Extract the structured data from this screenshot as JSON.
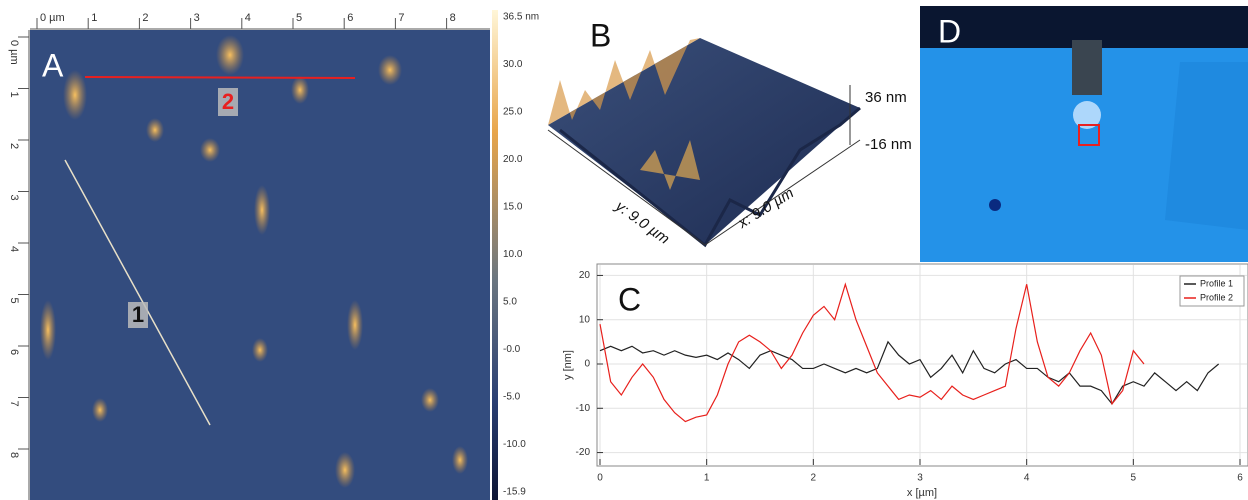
{
  "panels": {
    "a": {
      "letter": "A",
      "top_ruler": [
        "0 µm",
        "1",
        "2",
        "3",
        "4",
        "5",
        "6",
        "7",
        "8"
      ],
      "left_ruler": [
        "0 µm",
        "1",
        "2",
        "3",
        "4",
        "5",
        "6",
        "7",
        "8"
      ],
      "colorbar": [
        "36.5 nm",
        "30.0",
        "25.0",
        "20.0",
        "15.0",
        "10.0",
        "5.0",
        "-0.0",
        "-5.0",
        "-10.0",
        "-15.9"
      ],
      "profile_labels": [
        "1",
        "2"
      ]
    },
    "b": {
      "letter": "B",
      "z_top": "36 nm",
      "z_bottom": "-16 nm",
      "y_label": "y: 9.0 µm",
      "x_label": "x: 9.0 µm"
    },
    "d": {
      "letter": "D"
    }
  },
  "chart_data": {
    "type": "line",
    "letter": "C",
    "x_label": "x [µm]",
    "y_label": "y [nm]",
    "x": [
      0,
      0.1,
      0.2,
      0.3,
      0.4,
      0.5,
      0.6,
      0.7,
      0.8,
      0.9,
      1,
      1.1,
      1.2,
      1.3,
      1.4,
      1.5,
      1.6,
      1.7,
      1.8,
      1.9,
      2,
      2.1,
      2.2,
      2.3,
      2.4,
      2.5,
      2.6,
      2.7,
      2.8,
      2.9,
      3,
      3.1,
      3.2,
      3.3,
      3.4,
      3.5,
      3.6,
      3.7,
      3.8,
      3.9,
      4,
      4.1,
      4.2,
      4.3,
      4.4,
      4.5,
      4.6,
      4.7,
      4.8,
      4.9,
      5,
      5.1,
      5.2,
      5.3,
      5.4,
      5.5,
      5.6,
      5.7,
      5.8
    ],
    "series": [
      {
        "name": "Profile 1",
        "color": "#222222",
        "values": [
          3,
          4,
          3,
          4,
          2.5,
          3,
          2,
          3,
          2,
          1.5,
          2,
          1,
          2.5,
          1,
          -1,
          2,
          3,
          2,
          1,
          -1,
          -1,
          0,
          -1,
          -2,
          -1,
          -2,
          -1,
          5,
          2,
          0,
          1,
          -3,
          -1,
          2,
          -2,
          3,
          -1,
          -2,
          0,
          1,
          -1,
          -1,
          -3,
          -4,
          -2,
          -5,
          -5,
          -6,
          -9,
          -5,
          -4,
          -5,
          -2,
          -4,
          -6,
          -4,
          -6,
          -2,
          0
        ]
      },
      {
        "name": "Profile 2",
        "color": "#e8201c",
        "values": [
          9,
          -4,
          -7,
          -3,
          0,
          -3,
          -8,
          -11,
          -13,
          -12,
          -11.5,
          -7,
          0,
          5,
          6.5,
          5,
          3,
          -1,
          2,
          7,
          11,
          13,
          10,
          18,
          10,
          4,
          -2,
          -5,
          -8,
          -7,
          -7.5,
          -6,
          -8,
          -5,
          -7,
          -8,
          -7,
          -6,
          -5,
          8,
          18,
          5,
          -3,
          -5,
          -2,
          3,
          7,
          2,
          -9,
          -6,
          3,
          0,
          null,
          null,
          null,
          null,
          null,
          null,
          null
        ]
      }
    ],
    "xlim": [
      0,
      6
    ],
    "xticks": [
      0,
      1,
      2,
      3,
      4,
      5,
      6
    ],
    "ylim": [
      -21,
      21
    ],
    "yticks": [
      -20,
      -10,
      0,
      10,
      20
    ],
    "grid": true,
    "legend": "top-right"
  }
}
